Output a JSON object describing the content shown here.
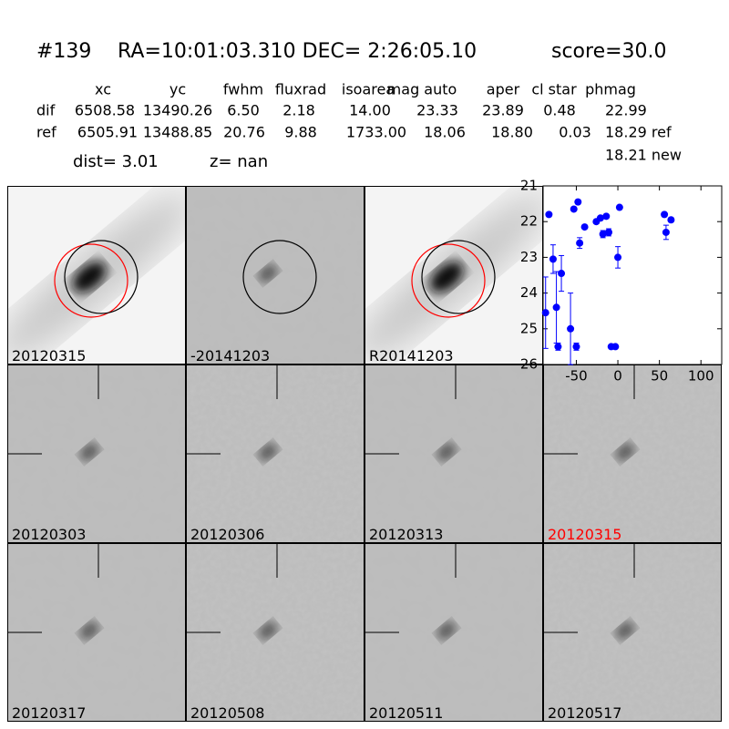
{
  "header": {
    "id": "#139",
    "coords": "RA=10:01:03.310 DEC= 2:26:05.10",
    "score": "score=30.0"
  },
  "table": {
    "columns": [
      "xc",
      "yc",
      "fwhm",
      "fluxrad",
      "isoarea",
      "mag auto",
      "aper",
      "cl star",
      "phmag"
    ],
    "rows": [
      [
        "dif",
        "6508.58",
        "13490.26",
        "6.50",
        "2.18",
        "14.00",
        "23.33",
        "23.89",
        "0.48",
        "22.99"
      ],
      [
        "ref",
        "6505.91",
        "13488.85",
        "20.76",
        "9.88",
        "1733.00",
        "18.06",
        "18.80",
        "0.03",
        "18.29 ref"
      ]
    ],
    "extra": "18.21 new"
  },
  "dist": "dist=  3.01",
  "z": "z=   nan",
  "panels": [
    {
      "label": "20120315",
      "color": "#000000"
    },
    {
      "label": "-20141203",
      "color": "#000000"
    },
    {
      "label": "R20141203",
      "color": "#000000"
    },
    {
      "label": "20120303",
      "color": "#000000"
    },
    {
      "label": "20120306",
      "color": "#000000"
    },
    {
      "label": "20120313",
      "color": "#000000"
    },
    {
      "label": "20120315",
      "color": "#ff0000"
    },
    {
      "label": "20120317",
      "color": "#000000"
    },
    {
      "label": "20120508",
      "color": "#000000"
    },
    {
      "label": "20120511",
      "color": "#000000"
    },
    {
      "label": "20120517",
      "color": "#000000"
    }
  ],
  "chart_data": {
    "type": "scatter",
    "color": "#0000ff",
    "x": [
      -83,
      -78,
      -74,
      -72,
      -68,
      -87,
      -57,
      -53,
      -50,
      -48,
      -46,
      -40,
      -26,
      -21,
      -18,
      -14,
      -11,
      -8,
      -3,
      0,
      2,
      56,
      58,
      64
    ],
    "y": [
      21.8,
      23.05,
      24.4,
      25.5,
      23.45,
      24.55,
      25.0,
      21.65,
      25.5,
      21.45,
      22.6,
      22.15,
      22.0,
      21.9,
      22.35,
      21.85,
      22.3,
      25.5,
      25.5,
      23.0,
      21.6,
      21.8,
      22.3,
      21.95
    ],
    "errors": [
      0.05,
      0.4,
      1.0,
      0.1,
      0.5,
      1.0,
      1.0,
      0.05,
      0.1,
      0.05,
      0.15,
      0.05,
      0.05,
      0.05,
      0.1,
      0.05,
      0.1,
      0.05,
      0.05,
      0.3,
      0.05,
      0.05,
      0.2,
      0.05
    ],
    "xlim": [
      -90,
      125
    ],
    "ylim": [
      26,
      21
    ],
    "xticks": [
      -50,
      0,
      50,
      100
    ],
    "yticks": [
      21,
      22,
      23,
      24,
      25,
      26
    ]
  }
}
